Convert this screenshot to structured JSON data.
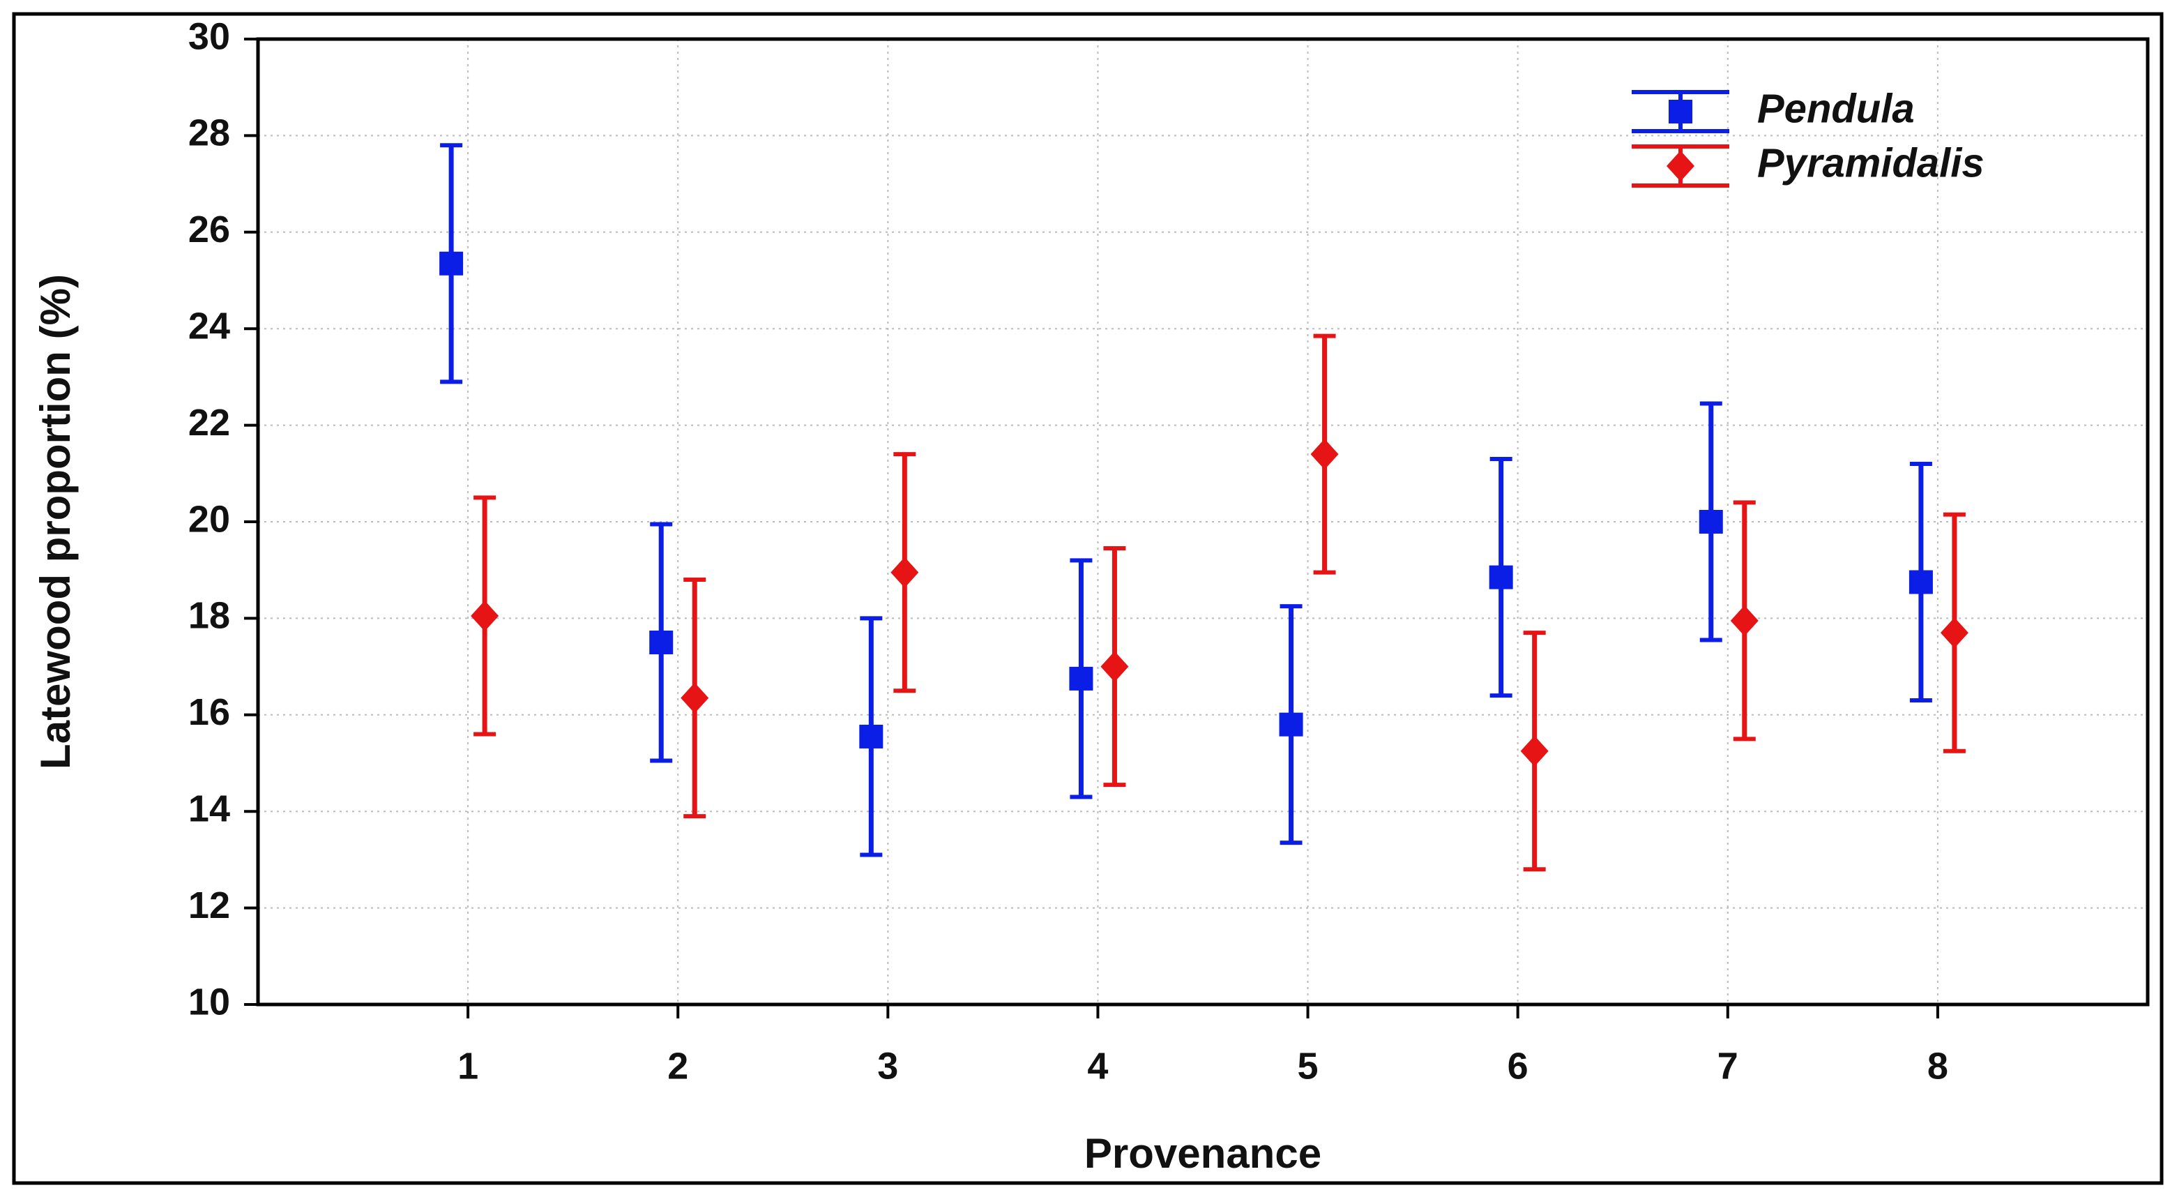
{
  "chart_data": {
    "type": "errorbar",
    "x_label": "Provenance",
    "y_label": "Latewood proportion (%)",
    "categories": [
      "1",
      "2",
      "3",
      "4",
      "5",
      "6",
      "7",
      "8"
    ],
    "series": [
      {
        "name": "Pendula",
        "color": "#0a1ee6",
        "marker": "square",
        "values": [
          25.35,
          17.5,
          15.55,
          16.75,
          15.8,
          18.85,
          20.0,
          18.75
        ],
        "errors": [
          2.45,
          2.45,
          2.45,
          2.45,
          2.45,
          2.45,
          2.45,
          2.45
        ]
      },
      {
        "name": "Pyramidalis",
        "color": "#e61414",
        "marker": "diamond",
        "values": [
          18.05,
          16.35,
          18.95,
          17.0,
          21.4,
          15.25,
          17.95,
          17.7
        ],
        "errors": [
          2.45,
          2.45,
          2.45,
          2.45,
          2.45,
          2.45,
          2.45,
          2.45
        ]
      }
    ],
    "ylim": [
      10,
      30
    ],
    "yticks": [
      10,
      12,
      14,
      16,
      18,
      20,
      22,
      24,
      26,
      28,
      30
    ],
    "grid": true,
    "legend": "upper right"
  }
}
